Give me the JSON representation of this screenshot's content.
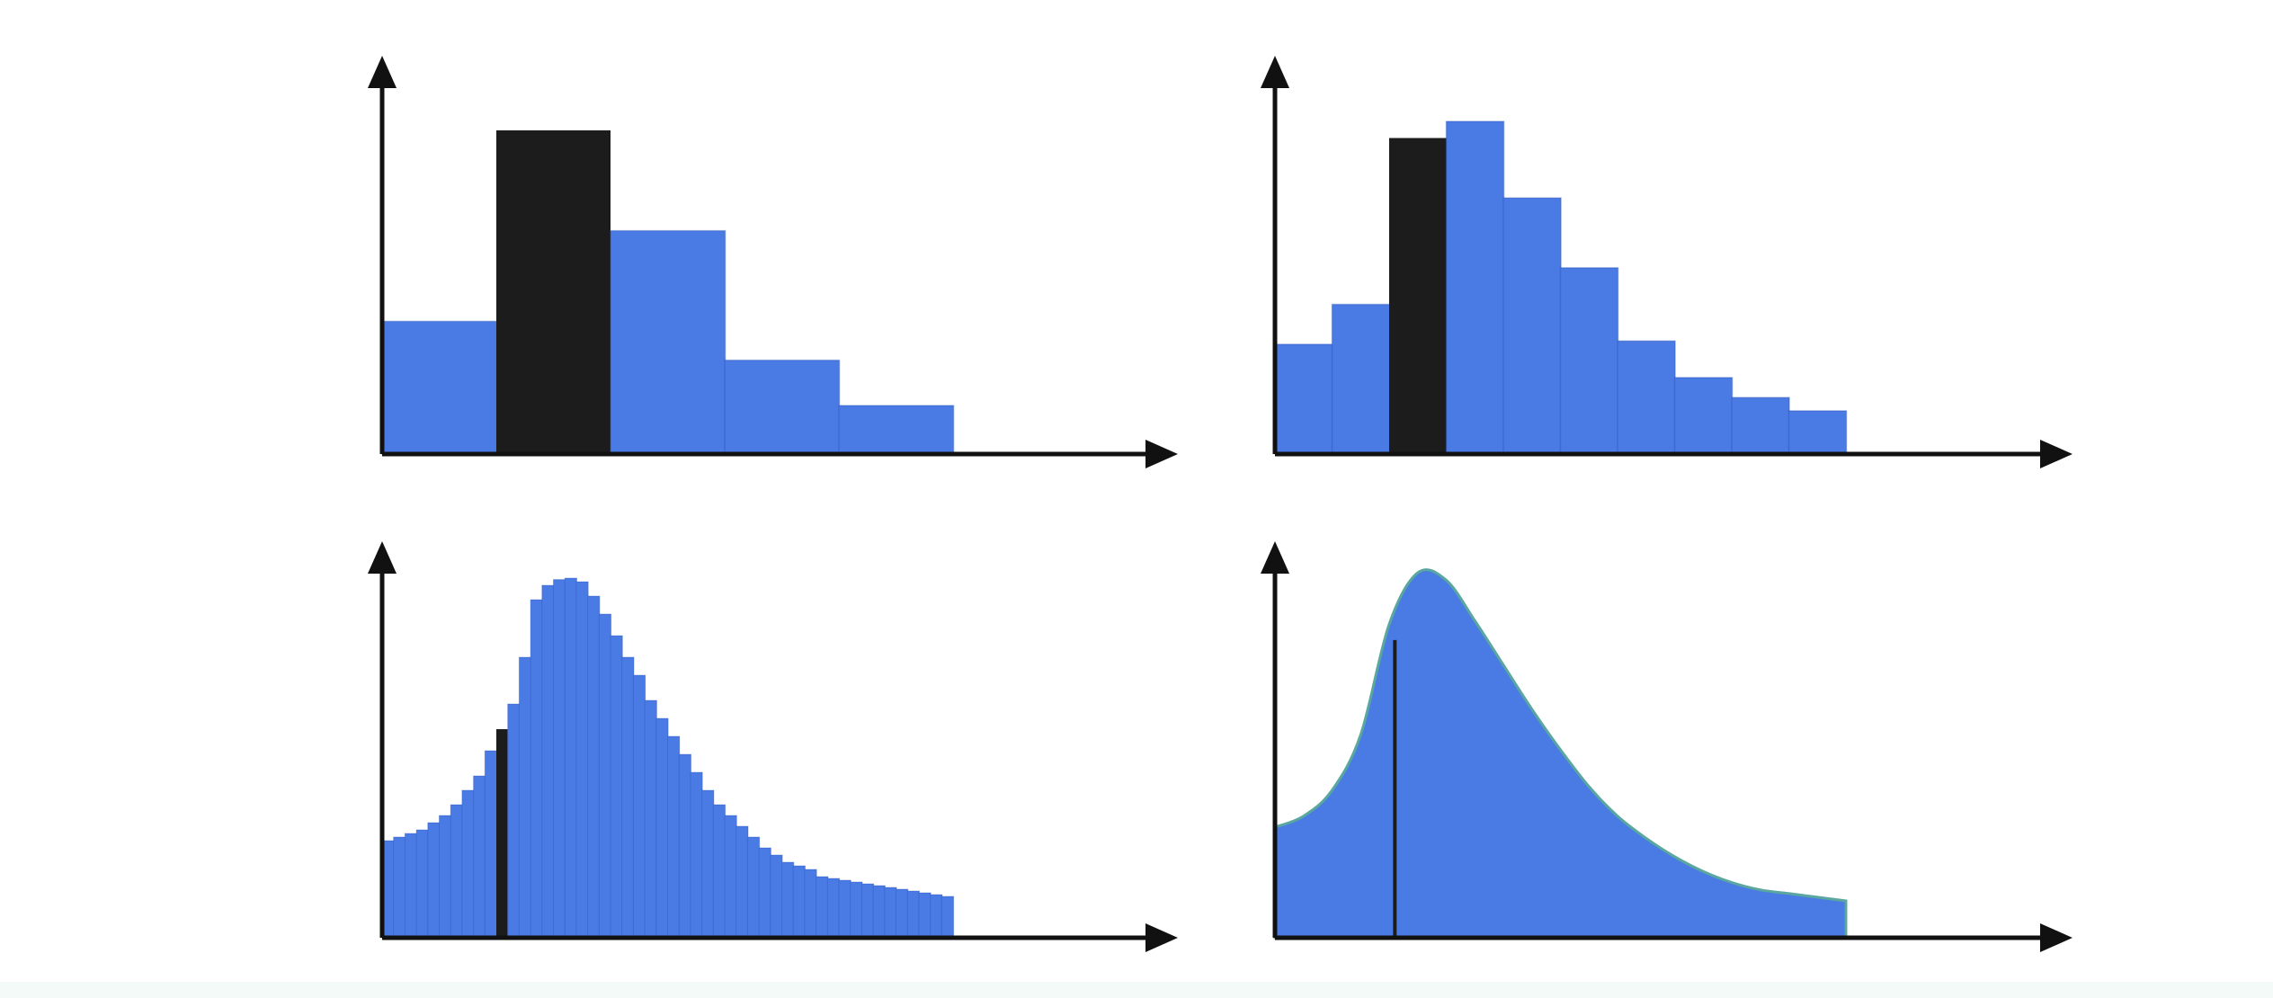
{
  "colors": {
    "bar": "#4a7ae4",
    "highlight": "#1c1c1c",
    "axis": "#111111",
    "curve_edge": "#5aa7a0"
  },
  "chart_data": [
    {
      "type": "bar",
      "title": "",
      "xlabel": "",
      "ylabel": "",
      "bins": 5,
      "values": [
        0.41,
        1.0,
        0.69,
        0.29,
        0.15
      ],
      "highlight_index": 1,
      "ylim": [
        0,
        1.2
      ]
    },
    {
      "type": "bar",
      "title": "",
      "xlabel": "",
      "ylabel": "",
      "bins": 10,
      "values": [
        0.33,
        0.45,
        0.95,
        1.0,
        0.77,
        0.56,
        0.34,
        0.23,
        0.17,
        0.13
      ],
      "highlight_index": 2,
      "ylim": [
        0,
        1.2
      ]
    },
    {
      "type": "bar",
      "title": "",
      "xlabel": "",
      "ylabel": "",
      "bins": 50,
      "values": [
        0.27,
        0.28,
        0.29,
        0.3,
        0.32,
        0.34,
        0.37,
        0.41,
        0.45,
        0.52,
        0.58,
        0.65,
        0.78,
        0.94,
        0.98,
        0.996,
        1.0,
        0.99,
        0.95,
        0.9,
        0.84,
        0.78,
        0.73,
        0.66,
        0.61,
        0.56,
        0.51,
        0.46,
        0.41,
        0.37,
        0.34,
        0.31,
        0.28,
        0.25,
        0.23,
        0.21,
        0.2,
        0.19,
        0.17,
        0.165,
        0.16,
        0.155,
        0.15,
        0.145,
        0.14,
        0.135,
        0.13,
        0.125,
        0.12,
        0.115
      ],
      "highlight_index": 10,
      "ylim": [
        0,
        1.2
      ]
    },
    {
      "type": "area",
      "title": "",
      "xlabel": "",
      "ylabel": "",
      "x": [
        0,
        0.05,
        0.1,
        0.15,
        0.2,
        0.25,
        0.3,
        0.35,
        0.4,
        0.45,
        0.5,
        0.55,
        0.6,
        0.65,
        0.7,
        0.75,
        0.8,
        0.85,
        0.9,
        0.95,
        1.0
      ],
      "y": [
        0.3,
        0.33,
        0.4,
        0.55,
        0.85,
        0.99,
        0.97,
        0.86,
        0.74,
        0.62,
        0.51,
        0.41,
        0.33,
        0.27,
        0.22,
        0.18,
        0.15,
        0.13,
        0.12,
        0.11,
        0.1
      ],
      "marker_x": 0.21,
      "ylim": [
        0,
        1.2
      ]
    }
  ]
}
